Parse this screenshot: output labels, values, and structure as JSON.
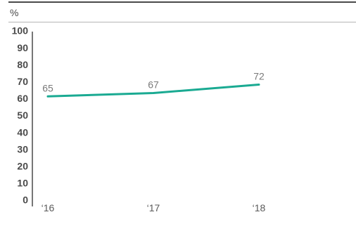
{
  "chart_data": {
    "type": "line",
    "title": "",
    "unit_label": "%",
    "xlabel": "",
    "ylabel": "",
    "x": [
      "‘16",
      "‘17",
      "‘18"
    ],
    "series": [
      {
        "values": [
          65,
          67,
          72
        ],
        "color": "#1aaa92"
      }
    ],
    "data_labels": [
      "65",
      "67",
      "72"
    ],
    "y_ticks": [
      0,
      10,
      20,
      30,
      40,
      50,
      60,
      70,
      80,
      90,
      100
    ],
    "ylim": [
      0,
      100
    ],
    "grid": false,
    "legend": "none"
  }
}
